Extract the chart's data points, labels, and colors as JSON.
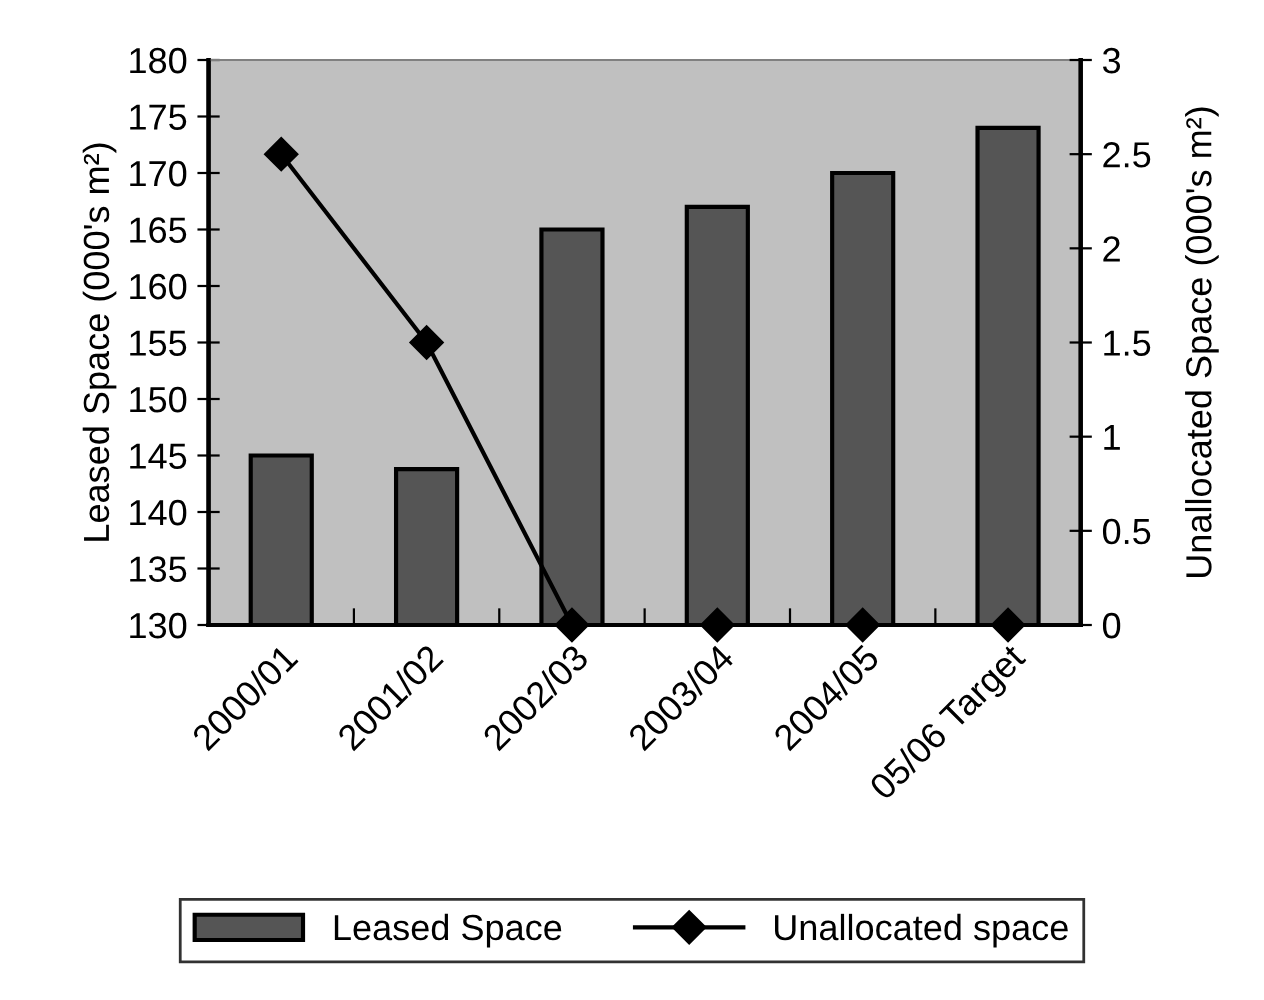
{
  "chart_data": {
    "type": "bar",
    "categories": [
      "2000/01",
      "2001/02",
      "2002/03",
      "2003/04",
      "2004/05",
      "05/06 Target"
    ],
    "ylabel": "Leased Space (000's m²)",
    "y2label": "Unallocated Space (000's m²)",
    "series": [
      {
        "name": "Leased Space",
        "color": "#555555",
        "values": [
          145,
          143.8,
          165,
          167,
          170,
          174
        ]
      },
      {
        "name": "Unallocated space",
        "type": "line",
        "axis": "y2",
        "color": "#000000",
        "marker": "diamond",
        "values": [
          2.5,
          1.5,
          0,
          0,
          0,
          0
        ]
      }
    ],
    "ylim": [
      130,
      180
    ],
    "yticks": [
      130,
      135,
      140,
      145,
      150,
      155,
      160,
      165,
      170,
      175,
      180
    ],
    "y2lim": [
      0,
      3
    ],
    "y2ticks": [
      0,
      0.5,
      1,
      1.5,
      2,
      2.5,
      3
    ],
    "grid": false,
    "legend": "bottom"
  }
}
